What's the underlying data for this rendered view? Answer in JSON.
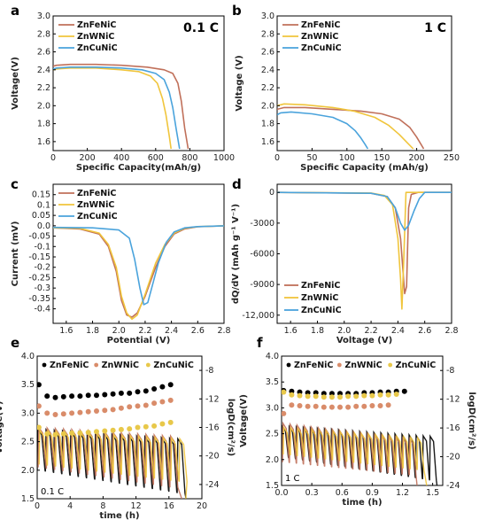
{
  "colors": {
    "ZnFeNiC": "#c0705a",
    "ZnWNiC": "#f0c53c",
    "ZnCuNiC": "#4aa3dc",
    "dotFe": "#000000",
    "dotW": "#d98c6a",
    "dotCu": "#e8c84a"
  },
  "chart_data": [
    {
      "id": "a",
      "type": "line",
      "letter": "a",
      "annotation": "0.1 C",
      "xlabel": "Specific Capacity(mAh/g)",
      "ylabel": "Voltage(V)",
      "xlim": [
        0,
        1000
      ],
      "ylim": [
        1.5,
        3.0
      ],
      "xticks": [
        0,
        200,
        400,
        600,
        800,
        1000
      ],
      "yticks": [
        1.6,
        1.8,
        2.0,
        2.2,
        2.4,
        2.6,
        2.8,
        3.0
      ],
      "yticklabels": [
        "1.6",
        "1.8",
        "2.0",
        "2.2",
        "2.4",
        "2.6",
        "2.8",
        "3.0"
      ],
      "legend_position": "top-left",
      "series": [
        {
          "name": "ZnFeNiC",
          "color_key": "ZnFeNiC",
          "x": [
            0,
            20,
            100,
            250,
            400,
            550,
            650,
            700,
            730,
            750,
            770,
            790
          ],
          "y": [
            2.44,
            2.45,
            2.46,
            2.46,
            2.45,
            2.43,
            2.4,
            2.36,
            2.25,
            2.05,
            1.75,
            1.52
          ]
        },
        {
          "name": "ZnWNiC",
          "color_key": "ZnWNiC",
          "x": [
            0,
            20,
            100,
            250,
            400,
            500,
            570,
            610,
            640,
            660,
            680,
            690
          ],
          "y": [
            2.4,
            2.41,
            2.42,
            2.42,
            2.4,
            2.38,
            2.33,
            2.25,
            2.08,
            1.9,
            1.66,
            1.52
          ]
        },
        {
          "name": "ZnCuNiC",
          "color_key": "ZnCuNiC",
          "x": [
            0,
            20,
            100,
            250,
            400,
            520,
            600,
            650,
            680,
            700,
            720,
            740
          ],
          "y": [
            2.41,
            2.42,
            2.43,
            2.43,
            2.42,
            2.4,
            2.36,
            2.29,
            2.15,
            1.98,
            1.74,
            1.52
          ]
        }
      ]
    },
    {
      "id": "b",
      "type": "line",
      "letter": "b",
      "annotation": "1 C",
      "xlabel": "Specific Capacity (mAh/g)",
      "ylabel": "Voltage (V)",
      "xlim": [
        0,
        250
      ],
      "ylim": [
        1.5,
        3.0
      ],
      "xticks": [
        0,
        50,
        100,
        150,
        200,
        250
      ],
      "yticks": [
        1.6,
        1.8,
        2.0,
        2.2,
        2.4,
        2.6,
        2.8,
        3.0
      ],
      "yticklabels": [
        "1.6",
        "1.8",
        "2.0",
        "2.2",
        "2.4",
        "2.6",
        "2.8",
        "3.0"
      ],
      "legend_position": "top-left",
      "series": [
        {
          "name": "ZnFeNiC",
          "color_key": "ZnFeNiC",
          "x": [
            0,
            10,
            40,
            80,
            120,
            150,
            175,
            190,
            200,
            210
          ],
          "y": [
            1.96,
            1.98,
            1.98,
            1.96,
            1.94,
            1.91,
            1.85,
            1.76,
            1.65,
            1.52
          ]
        },
        {
          "name": "ZnWNiC",
          "color_key": "ZnWNiC",
          "x": [
            0,
            10,
            40,
            80,
            110,
            140,
            160,
            175,
            185,
            195
          ],
          "y": [
            2.0,
            2.02,
            2.01,
            1.98,
            1.94,
            1.87,
            1.78,
            1.68,
            1.6,
            1.52
          ]
        },
        {
          "name": "ZnCuNiC",
          "color_key": "ZnCuNiC",
          "x": [
            0,
            5,
            20,
            50,
            80,
            100,
            112,
            120,
            126,
            130
          ],
          "y": [
            1.9,
            1.92,
            1.93,
            1.91,
            1.87,
            1.8,
            1.72,
            1.64,
            1.57,
            1.52
          ]
        }
      ]
    },
    {
      "id": "c",
      "type": "line",
      "letter": "c",
      "xlabel": "Potential (V)",
      "ylabel": "Current (mV)",
      "xlim": [
        1.5,
        2.8
      ],
      "ylim": [
        -0.47,
        0.2
      ],
      "xticks": [
        1.6,
        1.8,
        2.0,
        2.2,
        2.4,
        2.6,
        2.8
      ],
      "xticklabels": [
        "1.6",
        "1.8",
        "2.0",
        "2.2",
        "2.4",
        "2.6",
        "2.8"
      ],
      "yticks": [
        -0.4,
        -0.35,
        -0.3,
        -0.25,
        -0.2,
        -0.15,
        -0.1,
        -0.05,
        0.0,
        0.05,
        0.1,
        0.15
      ],
      "yticklabels": [
        "-0.4",
        "-0.35",
        "-0.3",
        "-0.25",
        "-0.2",
        "-0.15",
        "-0.1",
        "-0.05",
        "0.0",
        "0.05",
        "0.1",
        "0.15"
      ],
      "legend_position": "top-left",
      "series": [
        {
          "name": "ZnFeNiC",
          "color_key": "ZnFeNiC",
          "x": [
            1.5,
            1.7,
            1.85,
            1.92,
            1.98,
            2.02,
            2.06,
            2.1,
            2.14,
            2.2,
            2.28,
            2.35,
            2.42,
            2.5,
            2.6,
            2.8
          ],
          "y": [
            -0.01,
            -0.015,
            -0.04,
            -0.1,
            -0.22,
            -0.36,
            -0.43,
            -0.44,
            -0.42,
            -0.34,
            -0.2,
            -0.1,
            -0.04,
            -0.015,
            -0.005,
            0.0
          ]
        },
        {
          "name": "ZnWNiC",
          "color_key": "ZnWNiC",
          "x": [
            1.5,
            1.7,
            1.85,
            1.92,
            1.98,
            2.02,
            2.06,
            2.1,
            2.14,
            2.2,
            2.28,
            2.35,
            2.42,
            2.5,
            2.6,
            2.8
          ],
          "y": [
            -0.01,
            -0.012,
            -0.035,
            -0.09,
            -0.2,
            -0.34,
            -0.42,
            -0.45,
            -0.43,
            -0.33,
            -0.18,
            -0.09,
            -0.035,
            -0.012,
            -0.004,
            0.0
          ]
        },
        {
          "name": "ZnCuNiC",
          "color_key": "ZnCuNiC",
          "x": [
            1.5,
            1.8,
            2.0,
            2.08,
            2.12,
            2.16,
            2.19,
            2.22,
            2.25,
            2.3,
            2.36,
            2.42,
            2.5,
            2.6,
            2.8
          ],
          "y": [
            -0.008,
            -0.01,
            -0.02,
            -0.06,
            -0.16,
            -0.3,
            -0.38,
            -0.37,
            -0.3,
            -0.18,
            -0.08,
            -0.03,
            -0.01,
            -0.004,
            0.0
          ]
        }
      ]
    },
    {
      "id": "d",
      "type": "line",
      "letter": "d",
      "xlabel": "Voltage (V)",
      "ylabel": "dQ/dV (mAh g⁻¹ V⁻¹)",
      "xlim": [
        1.5,
        2.8
      ],
      "ylim": [
        -12800,
        800
      ],
      "xticks": [
        1.6,
        1.8,
        2.0,
        2.2,
        2.4,
        2.6,
        2.8
      ],
      "xticklabels": [
        "1.6",
        "1.8",
        "2.0",
        "2.2",
        "2.4",
        "2.6",
        "2.8"
      ],
      "yticks": [
        0,
        -3000,
        -6000,
        -9000,
        -12000
      ],
      "yticklabels": [
        "0",
        "-3000",
        "-6000",
        "-9000",
        "-12,000"
      ],
      "legend_position": "bottom-center",
      "series": [
        {
          "name": "ZnFeNiC",
          "color_key": "ZnFeNiC",
          "x": [
            1.5,
            2.2,
            2.32,
            2.38,
            2.42,
            2.45,
            2.465,
            2.48,
            2.5,
            2.55,
            2.8
          ],
          "y": [
            0,
            -80,
            -400,
            -1500,
            -4500,
            -9900,
            -9200,
            -1500,
            -200,
            0,
            0
          ]
        },
        {
          "name": "ZnWNiC",
          "color_key": "ZnWNiC",
          "x": [
            1.5,
            2.2,
            2.3,
            2.36,
            2.4,
            2.42,
            2.43,
            2.445,
            2.46,
            2.8
          ],
          "y": [
            0,
            -60,
            -300,
            -1200,
            -4500,
            -8500,
            -11400,
            -6000,
            0,
            0
          ]
        },
        {
          "name": "ZnCuNiC",
          "color_key": "ZnCuNiC",
          "x": [
            1.5,
            2.2,
            2.32,
            2.38,
            2.42,
            2.45,
            2.48,
            2.52,
            2.56,
            2.6,
            2.8
          ],
          "y": [
            0,
            -80,
            -400,
            -1500,
            -3000,
            -3700,
            -3200,
            -1800,
            -600,
            0,
            0
          ]
        }
      ]
    },
    {
      "id": "e",
      "type": "line+scatter",
      "letter": "e",
      "annotation": "0.1 C",
      "xlabel": "time (h)",
      "ylabel": "Voltage(V)",
      "y2label": "logD(cm²/s)",
      "xlim": [
        0,
        20
      ],
      "ylim": [
        1.5,
        4.0
      ],
      "y2lim": [
        -26,
        -6
      ],
      "xticks": [
        0,
        4,
        8,
        12,
        16,
        20
      ],
      "yticks": [
        1.5,
        2.0,
        2.5,
        3.0,
        3.5,
        4.0
      ],
      "yticklabels": [
        "1.5",
        "2.0",
        "2.5",
        "3.0",
        "3.5",
        "4.0"
      ],
      "y2ticks": [
        -8,
        -12,
        -16,
        -20,
        -24
      ],
      "y2ticklabels": [
        "-8",
        "-12",
        "-16",
        "-20",
        "-24"
      ],
      "legend_position": "top",
      "scatter_series": [
        {
          "name": "ZnFeNiC",
          "color_key": "dotFe",
          "x": [
            0.2,
            1.2,
            2.2,
            3.2,
            4.2,
            5.2,
            6.2,
            7.2,
            8.2,
            9.2,
            10.2,
            11.2,
            12.2,
            13.2,
            14.2,
            15.2,
            16.2
          ],
          "y": [
            -10.0,
            -11.6,
            -11.8,
            -11.7,
            -11.6,
            -11.6,
            -11.5,
            -11.5,
            -11.4,
            -11.3,
            -11.2,
            -11.2,
            -11.0,
            -10.9,
            -10.6,
            -10.3,
            -10.0
          ]
        },
        {
          "name": "ZnWNiC",
          "color_key": "dotW",
          "x": [
            0.2,
            1.2,
            2.2,
            3.2,
            4.2,
            5.2,
            6.2,
            7.2,
            8.2,
            9.2,
            10.2,
            11.2,
            12.2,
            13.2,
            14.2,
            15.2,
            16.2
          ],
          "y": [
            -13.0,
            -14.0,
            -14.2,
            -14.1,
            -14.0,
            -13.9,
            -13.8,
            -13.7,
            -13.6,
            -13.5,
            -13.3,
            -13.1,
            -13.0,
            -12.9,
            -12.6,
            -12.4,
            -12.2
          ]
        },
        {
          "name": "ZnCuNiC",
          "color_key": "dotCu",
          "x": [
            0.2,
            1.2,
            2.2,
            3.2,
            4.2,
            5.2,
            6.2,
            7.2,
            8.2,
            9.2,
            10.2,
            11.2,
            12.2,
            13.2,
            14.2,
            15.2,
            16.2
          ],
          "y": [
            -16.0,
            -16.9,
            -17.0,
            -16.9,
            -16.8,
            -16.8,
            -16.7,
            -16.6,
            -16.5,
            -16.4,
            -16.3,
            -16.2,
            -16.0,
            -15.9,
            -15.8,
            -15.5,
            -15.3
          ]
        }
      ],
      "cycling_series": [
        {
          "name": "ZnFeNiC",
          "color_key": "dotFe",
          "period_h": 1.0,
          "t_end": 18.2,
          "v_high": 2.72,
          "v_low": 2.0,
          "v_high_end": 2.55,
          "v_low_end": 1.6
        },
        {
          "name": "ZnWNiC",
          "color_key": "ZnFeNiC",
          "period_h": 1.0,
          "t_end": 17.8,
          "v_high": 2.75,
          "v_low": 2.05,
          "v_high_end": 2.6,
          "v_low_end": 1.7
        },
        {
          "name": "ZnCuNiC",
          "color_key": "ZnWNiC",
          "period_h": 1.0,
          "t_end": 18.0,
          "v_high": 2.7,
          "v_low": 2.1,
          "v_high_end": 2.55,
          "v_low_end": 1.8
        }
      ]
    },
    {
      "id": "f",
      "type": "line+scatter",
      "letter": "f",
      "annotation": "1 C",
      "xlabel": "time (h)",
      "ylabel": "Voltage(V)",
      "y2label": "logD(cm²/s)",
      "xlim": [
        0,
        1.6
      ],
      "ylim": [
        1.5,
        4.0
      ],
      "y2lim": [
        -24,
        -6
      ],
      "xticks": [
        0.0,
        0.3,
        0.6,
        0.9,
        1.2,
        1.5
      ],
      "xticklabels": [
        "0.0",
        "0.3",
        "0.6",
        "0.9",
        "1.2",
        "1.5"
      ],
      "yticks": [
        1.5,
        2.0,
        2.5,
        3.0,
        3.5,
        4.0
      ],
      "yticklabels": [
        "1.5",
        "2.0",
        "2.5",
        "3.0",
        "3.5",
        "4.0"
      ],
      "y2ticks": [
        -8,
        -12,
        -16,
        -20,
        -24
      ],
      "y2ticklabels": [
        "-8",
        "-12",
        "-16",
        "-20",
        "-24"
      ],
      "legend_position": "top",
      "scatter_series": [
        {
          "name": "ZnFeNiC",
          "color_key": "dotFe",
          "x": [
            0.02,
            0.1,
            0.18,
            0.26,
            0.34,
            0.42,
            0.5,
            0.58,
            0.66,
            0.74,
            0.82,
            0.9,
            0.98,
            1.06,
            1.14,
            1.22
          ],
          "y": [
            -10.8,
            -10.9,
            -11.0,
            -11.1,
            -11.1,
            -11.2,
            -11.2,
            -11.2,
            -11.2,
            -11.2,
            -11.1,
            -11.1,
            -11.0,
            -11.0,
            -10.9,
            -10.9
          ]
        },
        {
          "name": "ZnWNiC",
          "color_key": "dotW",
          "x": [
            0.02,
            0.1,
            0.18,
            0.26,
            0.34,
            0.42,
            0.5,
            0.58,
            0.66,
            0.74,
            0.82,
            0.9,
            0.98,
            1.06
          ],
          "y": [
            -14.0,
            -12.8,
            -12.9,
            -13.0,
            -13.0,
            -13.1,
            -13.1,
            -13.1,
            -13.1,
            -13.0,
            -13.0,
            -12.9,
            -12.9,
            -12.8
          ]
        },
        {
          "name": "ZnCuNiC",
          "color_key": "dotCu",
          "x": [
            0.02,
            0.1,
            0.18,
            0.26,
            0.34,
            0.42,
            0.5,
            0.58,
            0.66,
            0.74,
            0.82,
            0.9,
            0.98,
            1.06,
            1.14
          ],
          "y": [
            -11.0,
            -11.4,
            -11.5,
            -11.6,
            -11.6,
            -11.7,
            -11.7,
            -11.7,
            -11.6,
            -11.6,
            -11.5,
            -11.5,
            -11.4,
            -11.4,
            -11.3
          ]
        }
      ],
      "cycling_series": [
        {
          "name": "ZnFeNiC",
          "color_key": "dotFe",
          "period_h": 0.07,
          "t_end": 1.55,
          "v_high": 2.65,
          "v_low": 2.05,
          "v_high_end": 2.45,
          "v_low_end": 1.6
        },
        {
          "name": "ZnWNiC",
          "color_key": "ZnFeNiC",
          "period_h": 0.07,
          "t_end": 1.35,
          "v_high": 2.7,
          "v_low": 1.95,
          "v_high_end": 2.4,
          "v_low_end": 1.7
        },
        {
          "name": "ZnCuNiC",
          "color_key": "ZnWNiC",
          "period_h": 0.07,
          "t_end": 1.45,
          "v_high": 2.62,
          "v_low": 2.1,
          "v_high_end": 2.42,
          "v_low_end": 1.8
        }
      ]
    }
  ]
}
